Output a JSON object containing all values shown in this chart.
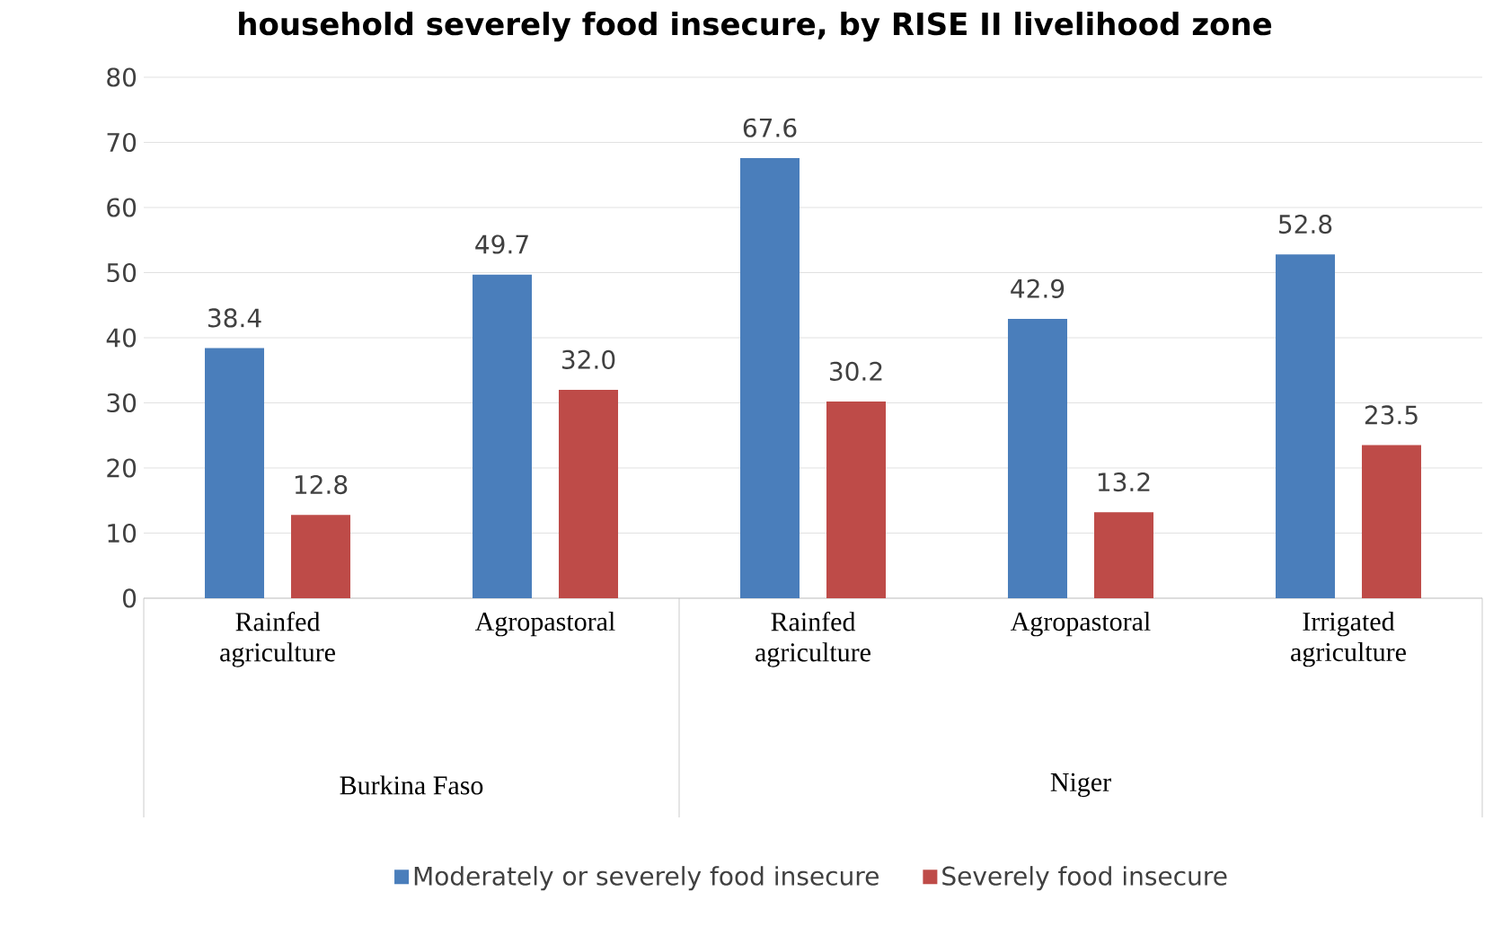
{
  "chart_data": {
    "type": "bar",
    "title": "household severely food insecure, by RISE II livelihood zone",
    "categories": [
      "Rainfed agriculture",
      "Agropastoral",
      "Rainfed agriculture",
      "Agropastoral",
      "Irrigated agriculture"
    ],
    "series": [
      {
        "name": "Moderately or severely food insecure",
        "color": "#4a7ebb",
        "values": [
          38.4,
          49.7,
          67.6,
          42.9,
          52.8
        ],
        "value_labels": [
          "38.4",
          "49.7",
          "67.6",
          "42.9",
          "52.8"
        ]
      },
      {
        "name": "Severely food insecure",
        "color": "#be4b48",
        "values": [
          12.8,
          32.0,
          30.2,
          13.2,
          23.5
        ],
        "value_labels": [
          "12.8",
          "32.0",
          "30.2",
          "13.2",
          "23.5"
        ]
      }
    ],
    "annotations": [
      "Burkina Faso",
      "Niger"
    ],
    "ylim": [
      0,
      80
    ],
    "yticks": [
      0,
      10,
      20,
      30,
      40,
      50,
      60,
      70,
      80
    ],
    "grid": "y",
    "legend": "bottom"
  }
}
